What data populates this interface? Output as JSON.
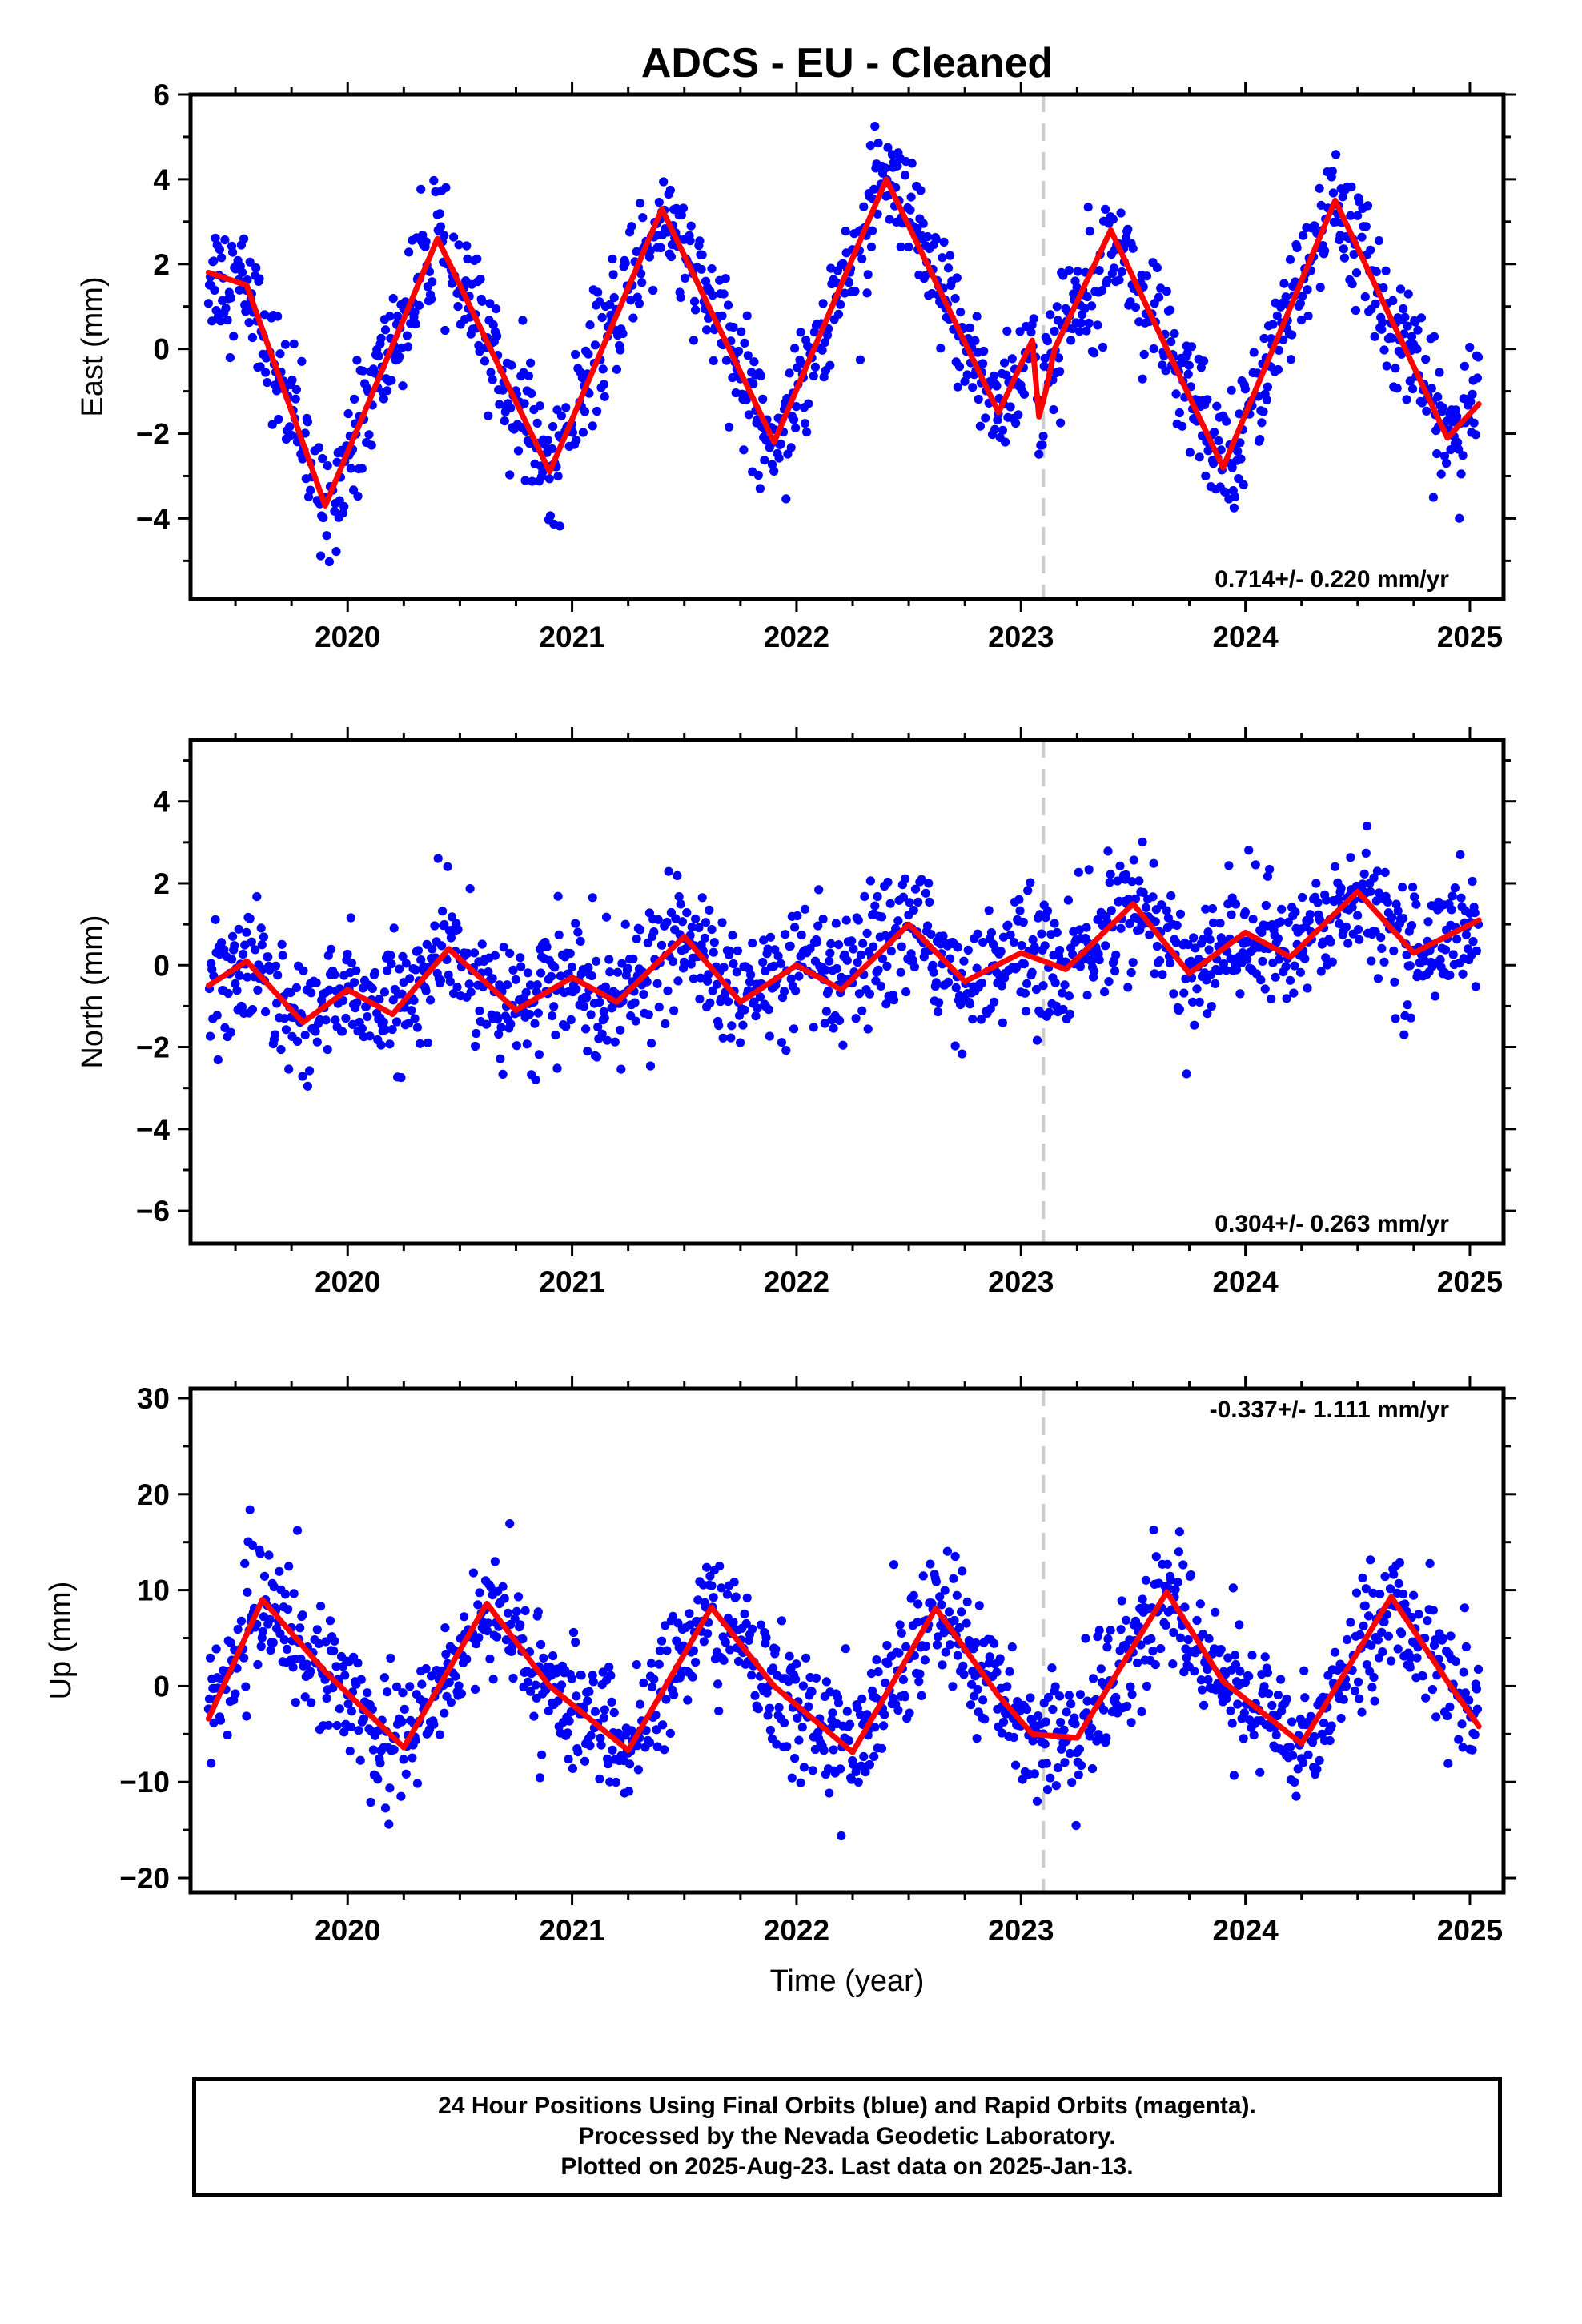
{
  "colors": {
    "points": "#0000ff",
    "fit": "#ff0000",
    "marker": "#cccccc",
    "frame": "#000000"
  },
  "chart_data": [
    {
      "type": "scatter",
      "title": "ADCS  - EU - Cleaned",
      "ylabel": "East (mm)",
      "xlabel": "",
      "xlim": [
        2019.3,
        2025.15
      ],
      "ylim": [
        -5.9,
        6.0
      ],
      "x_ticks": [
        2020,
        2021,
        2022,
        2023,
        2024,
        2025
      ],
      "y_ticks": [
        -4,
        -2,
        0,
        2,
        4,
        6
      ],
      "grid": false,
      "annotation": "0.714+/- 0.220 mm/yr",
      "vertical_marker": 2023.1,
      "series": [
        {
          "style": "points",
          "approx_daily_points": true
        },
        {
          "style": "seasonal fit",
          "x": [
            2019.38,
            2019.55,
            2019.9,
            2020.4,
            2020.9,
            2021.4,
            2021.9,
            2022.4,
            2022.9,
            2023.05,
            2023.08,
            2023.11,
            2023.15,
            2023.4,
            2023.9,
            2024.4,
            2024.9,
            2025.04
          ],
          "y": [
            1.8,
            1.5,
            -3.7,
            2.6,
            -2.9,
            3.3,
            -2.2,
            4.0,
            -1.5,
            0.2,
            -1.6,
            -1.0,
            0.0,
            2.8,
            -2.8,
            3.5,
            -2.1,
            -1.3
          ]
        }
      ]
    },
    {
      "type": "scatter",
      "title": "",
      "ylabel": "North (mm)",
      "xlabel": "",
      "xlim": [
        2019.3,
        2025.15
      ],
      "ylim": [
        -6.8,
        5.5
      ],
      "x_ticks": [
        2020,
        2021,
        2022,
        2023,
        2024,
        2025
      ],
      "y_ticks": [
        -6,
        -4,
        -2,
        0,
        2,
        4
      ],
      "grid": false,
      "annotation": "0.304+/- 0.263 mm/yr",
      "vertical_marker": 2023.1,
      "series": [
        {
          "style": "points",
          "approx_daily_points": true
        },
        {
          "style": "seasonal fit",
          "x": [
            2019.38,
            2019.55,
            2019.8,
            2020.0,
            2020.2,
            2020.45,
            2020.75,
            2021.0,
            2021.2,
            2021.5,
            2021.75,
            2022.0,
            2022.2,
            2022.5,
            2022.75,
            2023.0,
            2023.2,
            2023.5,
            2023.75,
            2024.0,
            2024.2,
            2024.5,
            2024.75,
            2025.04
          ],
          "y": [
            -0.5,
            0.1,
            -1.4,
            -0.6,
            -1.2,
            0.4,
            -1.1,
            -0.3,
            -0.9,
            0.7,
            -0.9,
            0.0,
            -0.6,
            1.0,
            -0.4,
            0.3,
            -0.1,
            1.5,
            -0.2,
            0.8,
            0.2,
            1.8,
            0.3,
            1.1
          ]
        }
      ]
    },
    {
      "type": "scatter",
      "title": "",
      "ylabel": "Up (mm)",
      "xlabel": "Time (year)",
      "xlim": [
        2019.3,
        2025.15
      ],
      "ylim": [
        -21.5,
        31
      ],
      "x_ticks": [
        2020,
        2021,
        2022,
        2023,
        2024,
        2025
      ],
      "y_ticks": [
        -20,
        -10,
        0,
        10,
        20,
        30
      ],
      "grid": false,
      "annotation": "-0.337+/- 1.111 mm/yr",
      "vertical_marker": 2023.1,
      "series": [
        {
          "style": "points",
          "approx_daily_points": true
        },
        {
          "style": "seasonal fit",
          "x": [
            2019.38,
            2019.62,
            2019.9,
            2020.25,
            2020.62,
            2020.9,
            2021.25,
            2021.62,
            2021.9,
            2022.25,
            2022.62,
            2022.9,
            2023.05,
            2023.25,
            2023.65,
            2023.9,
            2024.25,
            2024.65,
            2024.9,
            2025.04
          ],
          "y": [
            -3.4,
            9.0,
            1.5,
            -6.4,
            8.6,
            0.0,
            -6.7,
            8.2,
            0.0,
            -6.9,
            8.1,
            -1.0,
            -5.0,
            -5.4,
            9.8,
            0.5,
            -6.0,
            9.3,
            0.5,
            -4.2
          ]
        }
      ]
    }
  ],
  "footer": {
    "line1": "24 Hour Positions Using Final Orbits (blue) and Rapid Orbits (magenta).",
    "line2": "Processed by the Nevada Geodetic Laboratory.",
    "line3": "Plotted on 2025-Aug-23. Last data on 2025-Jan-13."
  }
}
